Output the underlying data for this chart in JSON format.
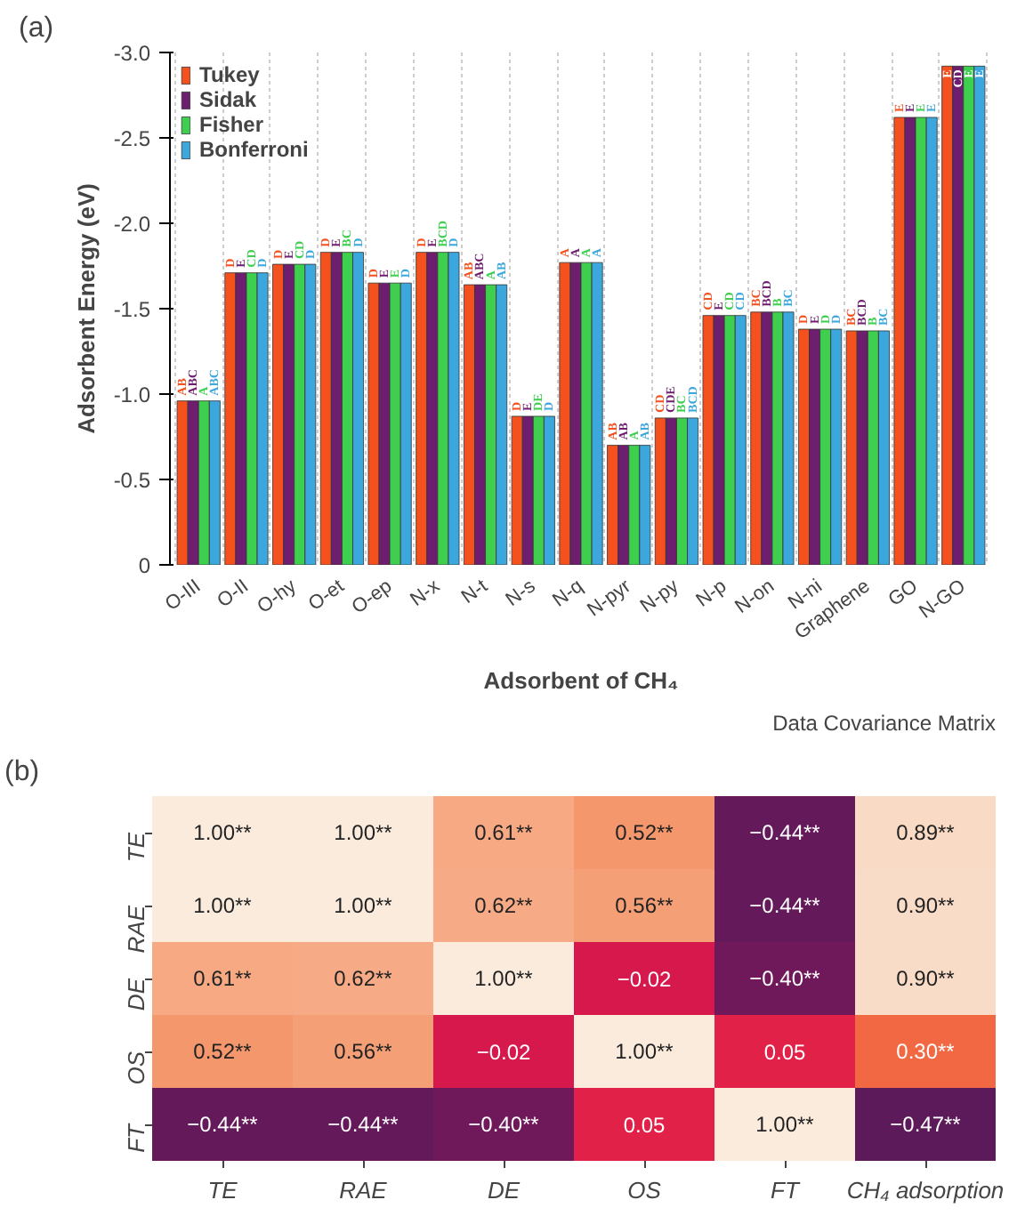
{
  "chart_data": [
    {
      "type": "bar",
      "annotations": [
        "(a)"
      ],
      "xlabel": "Adsorbent of CH₄",
      "ylabel": "Adsorbent Energy (eV)",
      "categories": [
        "O-III",
        "O-II",
        "O-hy",
        "O-et",
        "O-ep",
        "N-x",
        "N-t",
        "N-s",
        "N-q",
        "N-pyr",
        "N-py",
        "N-p",
        "N-on",
        "N-ni",
        "Graphene",
        "GO",
        "N-GO"
      ],
      "ylim": [
        0,
        -3.0
      ],
      "yticks": [
        0,
        {
          "value": -0.5,
          "label": "-0.5"
        },
        {
          "value": -1.0,
          "label": "-1.0"
        },
        {
          "value": -1.5,
          "label": "-1.5"
        },
        {
          "value": -2.0,
          "label": "-2.0"
        },
        {
          "value": -2.5,
          "label": "-2.5"
        },
        {
          "value": -3.0,
          "label": "-3.0"
        }
      ],
      "grid": "x",
      "legend": "top left",
      "series": [
        {
          "name": "Tukey",
          "color": "#f4511e",
          "values": [
            -0.96,
            -1.71,
            -1.76,
            -1.83,
            -1.65,
            -1.83,
            -1.64,
            -0.87,
            -1.77,
            -0.7,
            -0.86,
            -1.46,
            -1.48,
            -1.38,
            -1.37,
            -2.62,
            -2.92
          ],
          "value_labels": [
            "AB",
            "D",
            "D",
            "D",
            "D",
            "D",
            "AB",
            "D",
            "A",
            "AB",
            "CD",
            "CD",
            "BC",
            "D",
            "BC",
            "E",
            "E"
          ]
        },
        {
          "name": "Sidak",
          "color": "#6e1e6e",
          "values": [
            -0.96,
            -1.71,
            -1.76,
            -1.83,
            -1.65,
            -1.83,
            -1.64,
            -0.87,
            -1.77,
            -0.7,
            -0.86,
            -1.46,
            -1.48,
            -1.38,
            -1.37,
            -2.62,
            -2.92
          ],
          "value_labels": [
            "ABC",
            "E",
            "E",
            "E",
            "E",
            "E",
            "ABC",
            "E",
            "A",
            "AB",
            "CDE",
            "E",
            "BCD",
            "E",
            "BCD",
            "E",
            "CD"
          ]
        },
        {
          "name": "Fisher",
          "color": "#3ecf4f",
          "values": [
            -0.96,
            -1.71,
            -1.76,
            -1.83,
            -1.65,
            -1.83,
            -1.64,
            -0.87,
            -1.77,
            -0.7,
            -0.86,
            -1.46,
            -1.48,
            -1.38,
            -1.37,
            -2.62,
            -2.92
          ],
          "value_labels": [
            "A",
            "CD",
            "CD",
            "BC",
            "E",
            "BCD",
            "A",
            "DE",
            "A",
            "A",
            "BC",
            "CD",
            "B",
            "D",
            "B",
            "E",
            "E"
          ]
        },
        {
          "name": "Bonferroni",
          "color": "#3ca7dc",
          "values": [
            -0.96,
            -1.71,
            -1.76,
            -1.83,
            -1.65,
            -1.83,
            -1.64,
            -0.87,
            -1.77,
            -0.7,
            -0.86,
            -1.46,
            -1.48,
            -1.38,
            -1.37,
            -2.62,
            -2.92
          ],
          "value_labels": [
            "ABC",
            "D",
            "D",
            "D",
            "D",
            "D",
            "AB",
            "D",
            "A",
            "AB",
            "BCD",
            "CD",
            "BC",
            "D",
            "BC",
            "E",
            "E"
          ]
        }
      ]
    },
    {
      "type": "heatmap",
      "title": "Data Covariance Matrix",
      "annotations": [
        "(b)"
      ],
      "categories": [
        "TE",
        "RAE",
        "DE",
        "OS",
        "FT",
        "CH₄ adsorption"
      ],
      "y_categories": [
        "TE",
        "RAE",
        "DE",
        "OS",
        "FT"
      ],
      "cells": [
        [
          1.0,
          1.0,
          0.61,
          0.52,
          -0.44,
          0.89
        ],
        [
          1.0,
          1.0,
          0.62,
          0.56,
          -0.44,
          0.9
        ],
        [
          0.61,
          0.62,
          1.0,
          -0.02,
          -0.4,
          0.9
        ],
        [
          0.52,
          0.56,
          -0.02,
          1.0,
          0.05,
          0.3
        ],
        [
          -0.44,
          -0.44,
          -0.4,
          0.05,
          1.0,
          -0.47
        ]
      ],
      "cell_labels": [
        [
          "1.00**",
          "1.00**",
          "0.61**",
          "0.52**",
          "−0.44**",
          "0.89**"
        ],
        [
          "1.00**",
          "1.00**",
          "0.62**",
          "0.56**",
          "−0.44**",
          "0.90**"
        ],
        [
          "0.61**",
          "0.62**",
          "1.00**",
          "−0.02",
          "−0.40**",
          "0.90**"
        ],
        [
          "0.52**",
          "0.56**",
          "−0.02",
          "1.00**",
          "0.05",
          "0.30**"
        ],
        [
          "−0.44**",
          "−0.44**",
          "−0.40**",
          "0.05",
          "1.00**",
          "−0.47**"
        ]
      ]
    }
  ]
}
